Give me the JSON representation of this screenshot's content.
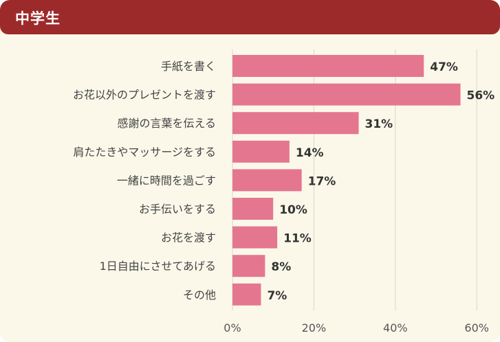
{
  "header": {
    "title": "中学生"
  },
  "colors": {
    "header": "#9d2a2a",
    "bar": "#e5768f",
    "background": "#fbf8ea",
    "grid": "#d6d6cc"
  },
  "chart_data": {
    "type": "bar",
    "orientation": "horizontal",
    "title": "中学生",
    "categories": [
      "手紙を書く",
      "お花以外のプレゼントを渡す",
      "感謝の言葉を伝える",
      "肩たたきやマッサージをする",
      "一緒に時間を過ごす",
      "お手伝いをする",
      "お花を渡す",
      "1日自由にさせてあげる",
      "その他"
    ],
    "values": [
      47,
      56,
      31,
      14,
      17,
      10,
      11,
      8,
      7
    ],
    "value_labels": [
      "47%",
      "56%",
      "31%",
      "14%",
      "17%",
      "10%",
      "11%",
      "8%",
      "7%"
    ],
    "xlim": [
      0,
      60
    ],
    "xticks": [
      0,
      20,
      40,
      60
    ],
    "xtick_labels": [
      "0%",
      "20%",
      "40%",
      "60%"
    ],
    "grid": true,
    "legend": "none"
  }
}
